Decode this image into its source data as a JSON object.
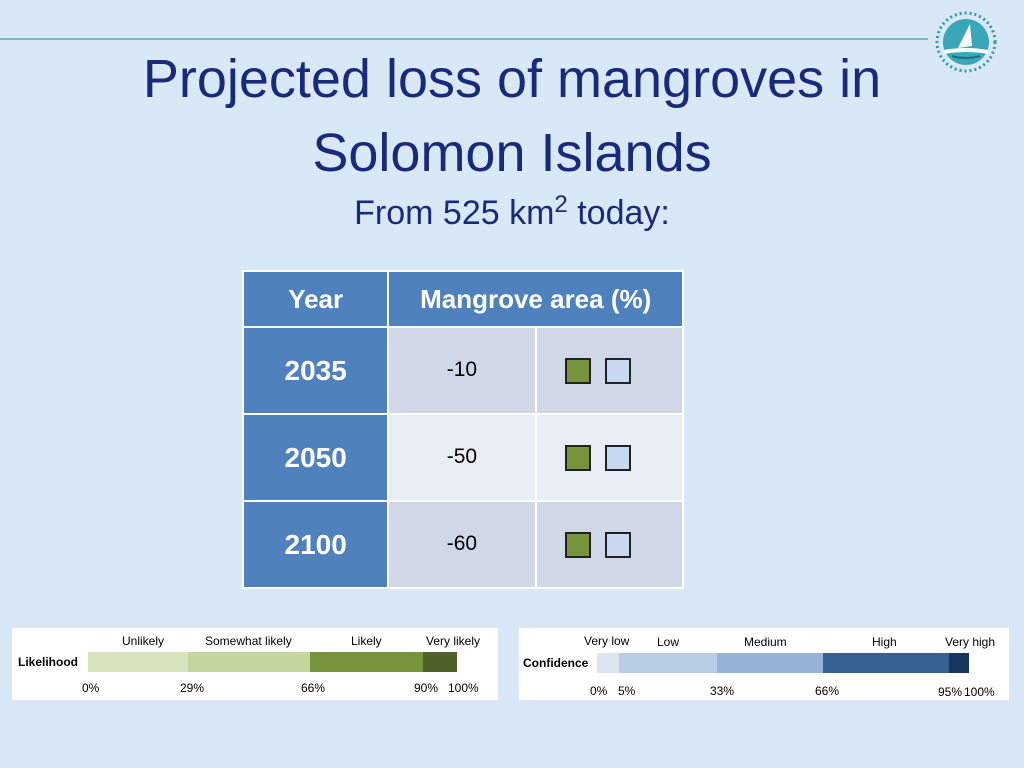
{
  "slide": {
    "title_line1": "Projected loss of mangroves in",
    "title_line2": "Solomon Islands",
    "subtitle_prefix": "From 525 km",
    "subtitle_sup": "2",
    "subtitle_suffix": " today:"
  },
  "table": {
    "headers": [
      "Year",
      "Mangrove area (%)"
    ],
    "rows": [
      {
        "year": "2035",
        "value": "-10"
      },
      {
        "year": "2050",
        "value": "-50"
      },
      {
        "year": "2100",
        "value": "-60"
      }
    ]
  },
  "likelihood": {
    "title": "Likelihood",
    "categories": [
      "Unlikely",
      "Somewhat  likely",
      "Likely",
      "Very  likely"
    ],
    "ticks": [
      "0%",
      "29%",
      "66%",
      "90%",
      "100%"
    ],
    "colors": [
      "#d8e4bc",
      "#c3d69b",
      "#77933c",
      "#4f6228"
    ]
  },
  "confidence": {
    "title": "Confidence",
    "categories": [
      "Very  low",
      "Low",
      "Medium",
      "High",
      "Very  high"
    ],
    "ticks": [
      "0%",
      "5%",
      "33%",
      "66%",
      "95%",
      "100%"
    ],
    "colors": [
      "#dce6f2",
      "#b9cde5",
      "#95b3d7",
      "#366092",
      "#17375e"
    ]
  },
  "colors": {
    "title_text": "#1a2a7a",
    "header_bg": "#4f81bd",
    "likelihood_marker": "#77933c",
    "confidence_marker": "#c6d9f1"
  }
}
